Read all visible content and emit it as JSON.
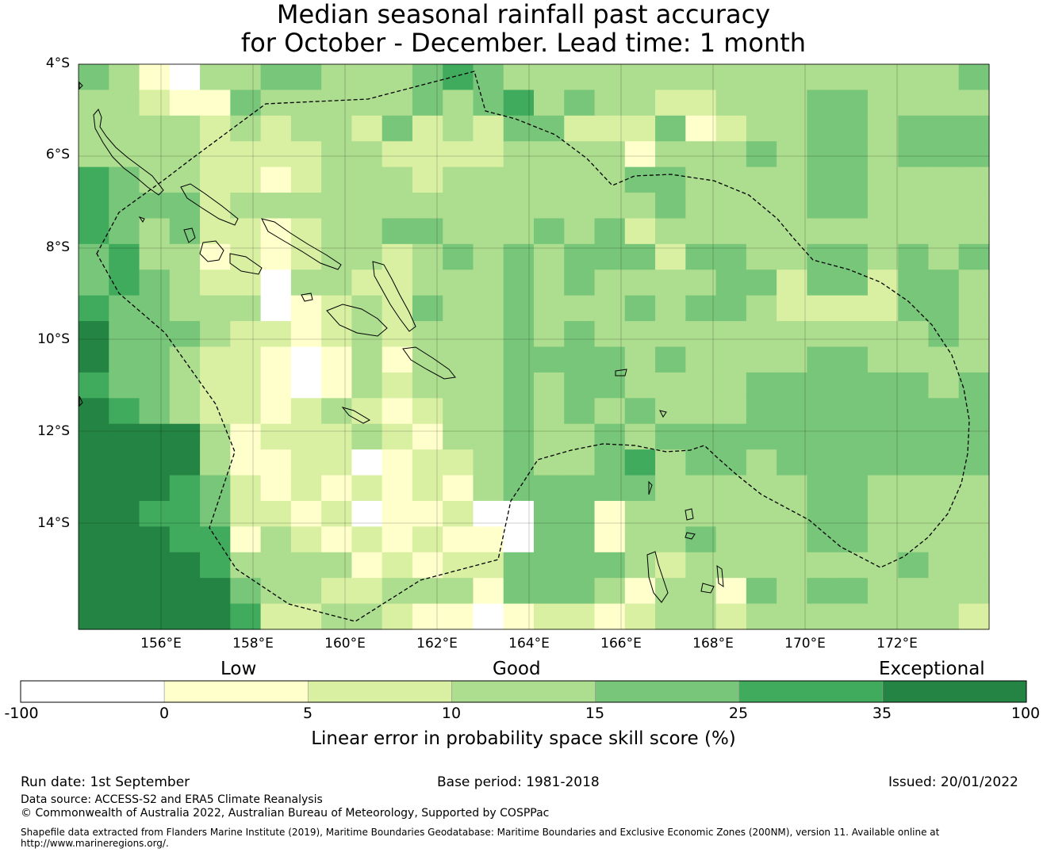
{
  "title_line1": "Median seasonal rainfall past accuracy",
  "title_line2": "for October - December. Lead time: 1 month",
  "map": {
    "lat_labels": [
      "4°S",
      "6°S",
      "8°S",
      "10°S",
      "12°S",
      "14°S"
    ],
    "lon_labels": [
      "156°E",
      "158°E",
      "160°E",
      "162°E",
      "164°E",
      "166°E",
      "168°E",
      "170°E",
      "172°E"
    ],
    "cell_size_deg": 0.833,
    "skill_grid": [
      "4333555445665666666666",
      "3333444554444566666666",
      "1233343344444466656666",
      "0133344333433366555666",
      "3122222123322233445566",
      "3432232223222211221345",
      "4322131100211121123332",
      "4332232231100222212332",
      "3333333332211322121323",
      "3323333323333230202123",
      "3342334222212121111232",
      "4422234334333212212131",
      "5332333433333332121231",
      "4422333333333333301210",
      "3543333444444444400441",
      "3343334333343333444442",
      "3423333443444433444442",
      "3323334433344344411431",
      "3321432434333435433312",
      "3243443233343343333233",
      "3213333434333344334333",
      "3323333444333344333312",
      "3334333343334443333343",
      "3333333322334444333333",
      "3444443442344444444343",
      "3444443442344444444343",
      "3333333322334444333333",
      "3344333444334444333433",
      "3344333344433444333333",
      "4344333433334444333332"
    ]
  },
  "colorbar": {
    "categories": [
      "Low",
      "Good",
      "Exceptional"
    ],
    "ticks": [
      "-100",
      "0",
      "5",
      "10",
      "15",
      "25",
      "35",
      "100"
    ],
    "colors": [
      "#ffffff",
      "#ffffcc",
      "#d9f0a3",
      "#addd8e",
      "#78c679",
      "#41ab5d",
      "#238443"
    ],
    "title": "Linear error in probability space skill score (%)"
  },
  "footer": {
    "run_date": "Run date: 1st September",
    "base_period": "Base period: 1981-2018",
    "issued": "Issued: 20/01/2022",
    "data_source": "Data source: ACCESS-S2 and ERA5 Climate Reanalysis",
    "copyright": "© Commonwealth of Australia 2022, Australian Bureau of Meteorology, Supported by COSPPac",
    "shapefile_line1": "Shapefile data extracted from Flanders Marine Institute (2019), Maritime Boundaries Geodatabase: Maritime Boundaries and Exclusive Economic Zones (200NM), version 11. Available online at",
    "shapefile_line2": "http://www.marineregions.org/."
  }
}
